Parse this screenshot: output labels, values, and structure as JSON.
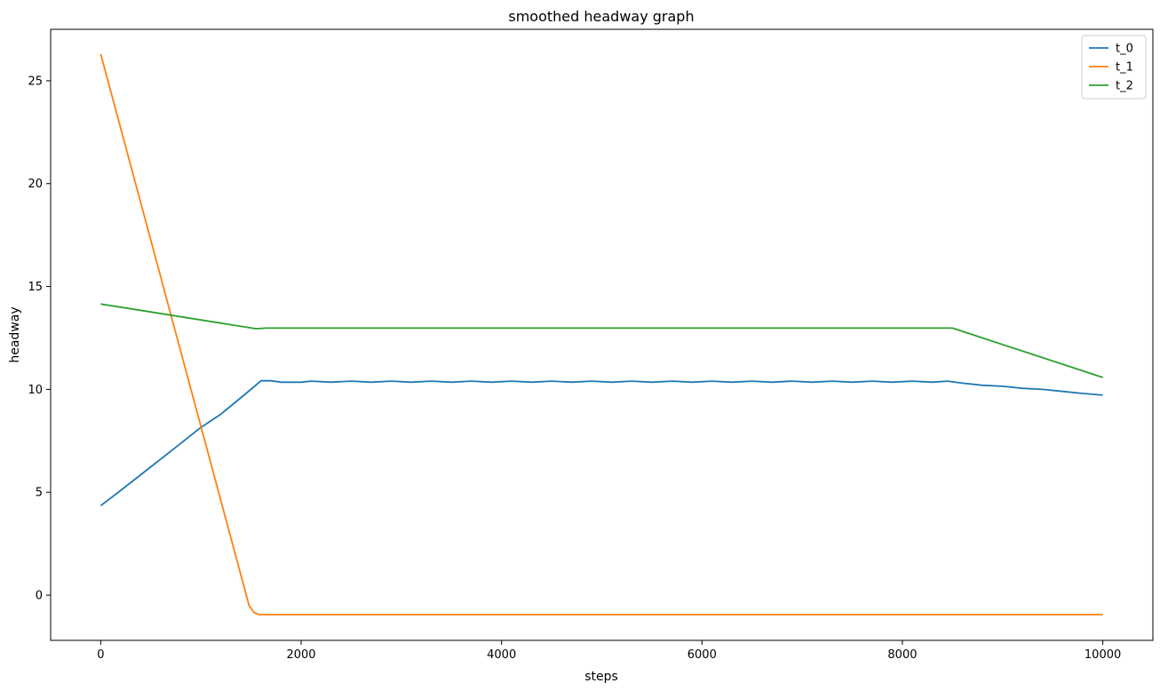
{
  "chart_data": {
    "type": "line",
    "title": "smoothed headway graph",
    "xlabel": "steps",
    "ylabel": "headway",
    "xlim": [
      -500,
      10500
    ],
    "ylim": [
      -2.2,
      27.5
    ],
    "xticks": [
      0,
      2000,
      4000,
      6000,
      8000,
      10000
    ],
    "yticks": [
      0,
      5,
      10,
      15,
      20,
      25
    ],
    "grid": false,
    "legend_position": "top-right",
    "series": [
      {
        "name": "t_0",
        "color": "#1f77b4",
        "points": [
          [
            0,
            4.35
          ],
          [
            150,
            4.9
          ],
          [
            400,
            5.85
          ],
          [
            700,
            7.0
          ],
          [
            1000,
            8.15
          ],
          [
            1200,
            8.8
          ],
          [
            1450,
            9.8
          ],
          [
            1600,
            10.42
          ],
          [
            1700,
            10.42
          ],
          [
            1800,
            10.35
          ],
          [
            2000,
            10.35
          ],
          [
            2100,
            10.4
          ],
          [
            2300,
            10.35
          ],
          [
            2500,
            10.4
          ],
          [
            2700,
            10.35
          ],
          [
            2900,
            10.4
          ],
          [
            3100,
            10.35
          ],
          [
            3300,
            10.4
          ],
          [
            3500,
            10.35
          ],
          [
            3700,
            10.4
          ],
          [
            3900,
            10.35
          ],
          [
            4100,
            10.4
          ],
          [
            4300,
            10.35
          ],
          [
            4500,
            10.4
          ],
          [
            4700,
            10.35
          ],
          [
            4900,
            10.4
          ],
          [
            5100,
            10.35
          ],
          [
            5300,
            10.4
          ],
          [
            5500,
            10.35
          ],
          [
            5700,
            10.4
          ],
          [
            5900,
            10.35
          ],
          [
            6100,
            10.4
          ],
          [
            6300,
            10.35
          ],
          [
            6500,
            10.4
          ],
          [
            6700,
            10.35
          ],
          [
            6900,
            10.4
          ],
          [
            7100,
            10.35
          ],
          [
            7300,
            10.4
          ],
          [
            7500,
            10.35
          ],
          [
            7700,
            10.4
          ],
          [
            7900,
            10.35
          ],
          [
            8100,
            10.4
          ],
          [
            8300,
            10.35
          ],
          [
            8450,
            10.4
          ],
          [
            8600,
            10.3
          ],
          [
            8800,
            10.2
          ],
          [
            9000,
            10.15
          ],
          [
            9200,
            10.05
          ],
          [
            9400,
            10.0
          ],
          [
            9600,
            9.9
          ],
          [
            9800,
            9.8
          ],
          [
            10000,
            9.72
          ]
        ]
      },
      {
        "name": "t_1",
        "color": "#ff7f0e",
        "points": [
          [
            0,
            26.3
          ],
          [
            1480,
            -0.5
          ],
          [
            1530,
            -0.85
          ],
          [
            1580,
            -0.95
          ],
          [
            1650,
            -0.95
          ],
          [
            3000,
            -0.95
          ],
          [
            5000,
            -0.95
          ],
          [
            7000,
            -0.95
          ],
          [
            9000,
            -0.95
          ],
          [
            10000,
            -0.95
          ]
        ]
      },
      {
        "name": "t_2",
        "color": "#2ca02c",
        "points": [
          [
            0,
            14.15
          ],
          [
            1550,
            12.95
          ],
          [
            1650,
            12.98
          ],
          [
            3000,
            12.98
          ],
          [
            5000,
            12.98
          ],
          [
            7000,
            12.98
          ],
          [
            8500,
            12.98
          ],
          [
            10000,
            10.58
          ]
        ]
      }
    ]
  }
}
